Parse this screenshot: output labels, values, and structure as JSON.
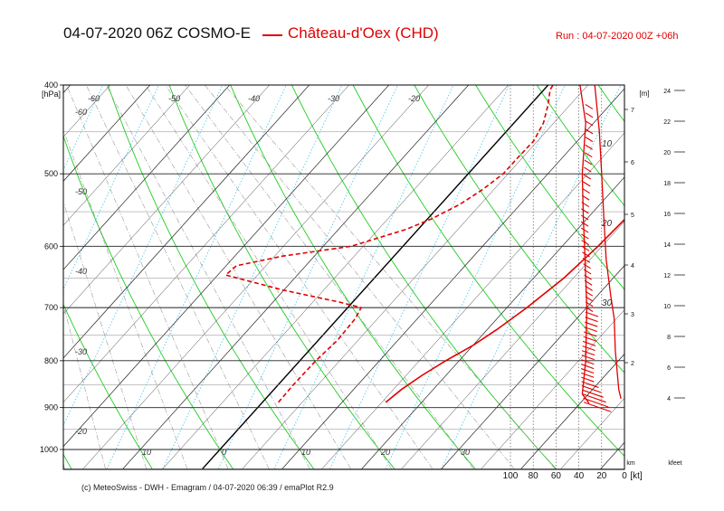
{
  "header": {
    "title": "04-07-2020 06Z COSMO-E",
    "station": "Château-d'Oex (CHD)",
    "run": "Run : 04-07-2020 00Z +06h"
  },
  "footer": "(c) MeteoSwiss - DWH - Emagram / 04-07-2020 06:39 / emaPlot R2.9",
  "chart_data": {
    "type": "line",
    "title": "04-07-2020 06Z COSMO-E",
    "ylabel": "[hPa]",
    "y_scale": "log",
    "ylim": [
      1030,
      400
    ],
    "xlim": [
      -22,
      46
    ],
    "pressure_ticks": [
      400,
      500,
      600,
      700,
      800,
      900,
      1000
    ],
    "temp_labels_bottom": [
      "10",
      "0",
      "10",
      "20",
      "30"
    ],
    "temp_labels_bottom_values": [
      -10,
      0,
      10,
      20,
      30
    ],
    "temp_labels_diag_left": [
      "-60",
      "-50",
      "-40",
      "-30",
      "-20"
    ],
    "temp_labels_diag_top": [
      "-60",
      "-50",
      "-40",
      "-30",
      "-20"
    ],
    "height_km_labels": [
      "2",
      "3",
      "4",
      "5",
      "6",
      "7"
    ],
    "height_km_label": "km",
    "height_m_label": "[m]",
    "height_kfeet_labels": [
      "4",
      "6",
      "8",
      "10",
      "12",
      "14",
      "16",
      "18",
      "20",
      "22",
      "24"
    ],
    "height_kfeet_label": "kfeet",
    "wind_speed_labels": [
      "100",
      "80",
      "60",
      "40",
      "20",
      "0"
    ],
    "wind_speed_unit": "[kt]",
    "wind_profile_labels": [
      "10",
      "20",
      "30"
    ],
    "colors": {
      "temperature": "#e00000",
      "isotherm": "#000000",
      "dry_adiabat": "#22cc22",
      "mixing_ratio": "#55ccee",
      "pressure_line": "#000000"
    },
    "series": [
      {
        "name": "Temperature",
        "style": "solid",
        "color": "#e00000",
        "points": [
          {
            "p": 888,
            "t": 15.5
          },
          {
            "p": 860,
            "t": 16.0
          },
          {
            "p": 830,
            "t": 17.0
          },
          {
            "p": 800,
            "t": 18.3
          },
          {
            "p": 770,
            "t": 20.0
          },
          {
            "p": 740,
            "t": 21.2
          },
          {
            "p": 700,
            "t": 22.5
          },
          {
            "p": 650,
            "t": 23.8
          },
          {
            "p": 600,
            "t": 24.5
          },
          {
            "p": 560,
            "t": 24.8
          },
          {
            "p": 520,
            "t": 24.0
          },
          {
            "p": 480,
            "t": 23.0
          },
          {
            "p": 450,
            "t": 22.0
          },
          {
            "p": 420,
            "t": 21.6
          },
          {
            "p": 400,
            "t": 21.5
          }
        ]
      },
      {
        "name": "Dew point",
        "style": "dashed",
        "color": "#e00000",
        "points": [
          {
            "p": 888,
            "t": 2.0
          },
          {
            "p": 850,
            "t": 1.9
          },
          {
            "p": 800,
            "t": 2.0
          },
          {
            "p": 760,
            "t": 2.4
          },
          {
            "p": 720,
            "t": 2.2
          },
          {
            "p": 700,
            "t": 1.7
          },
          {
            "p": 690,
            "t": -1.8
          },
          {
            "p": 670,
            "t": -10.0
          },
          {
            "p": 645,
            "t": -19.0
          },
          {
            "p": 630,
            "t": -18.7
          },
          {
            "p": 615,
            "t": -14.0
          },
          {
            "p": 600,
            "t": -6.5
          },
          {
            "p": 575,
            "t": -1.5
          },
          {
            "p": 560,
            "t": 0.5
          },
          {
            "p": 540,
            "t": 2.4
          },
          {
            "p": 520,
            "t": 3.6
          },
          {
            "p": 500,
            "t": 4.4
          },
          {
            "p": 480,
            "t": 4.4
          },
          {
            "p": 460,
            "t": 4.5
          },
          {
            "p": 440,
            "t": 3.7
          },
          {
            "p": 420,
            "t": 2.2
          },
          {
            "p": 405,
            "t": 0.8
          },
          {
            "p": 400,
            "t": 0.6
          }
        ]
      }
    ],
    "wind_profiles": [
      {
        "name": "Wind profile 1",
        "points": [
          {
            "p": 400,
            "kt": 39
          },
          {
            "p": 440,
            "kt": 34
          },
          {
            "p": 500,
            "kt": 37
          },
          {
            "p": 560,
            "kt": 36
          },
          {
            "p": 600,
            "kt": 35
          },
          {
            "p": 700,
            "kt": 33
          },
          {
            "p": 800,
            "kt": 34
          },
          {
            "p": 870,
            "kt": 37
          },
          {
            "p": 890,
            "kt": 31
          }
        ]
      },
      {
        "name": "Wind profile 2",
        "points": [
          {
            "p": 400,
            "kt": 26
          },
          {
            "p": 450,
            "kt": 22
          },
          {
            "p": 500,
            "kt": 20
          },
          {
            "p": 560,
            "kt": 18
          },
          {
            "p": 620,
            "kt": 16
          },
          {
            "p": 680,
            "kt": 12
          },
          {
            "p": 720,
            "kt": 9
          },
          {
            "p": 780,
            "kt": 8
          },
          {
            "p": 860,
            "kt": 5
          },
          {
            "p": 880,
            "kt": 3
          }
        ]
      }
    ]
  }
}
